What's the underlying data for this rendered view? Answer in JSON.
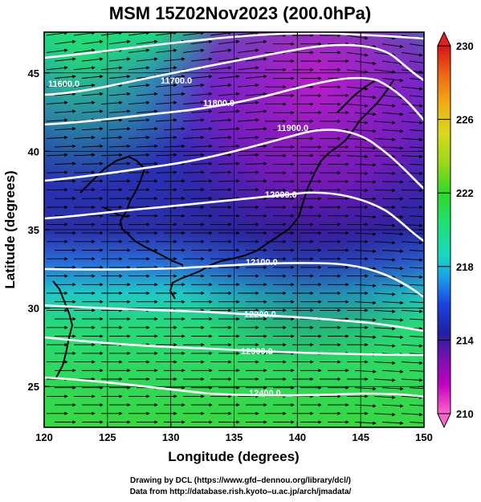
{
  "chart_data": {
    "type": "heatmap",
    "title": "MSM 15Z02Nov2023 (200.0hPa)",
    "xlabel": "Longitude (degrees)",
    "ylabel": "Latitude  (degrees)",
    "xlim": [
      120,
      150
    ],
    "ylim": [
      22.4,
      47.6
    ],
    "x_ticks": [
      120,
      125,
      130,
      135,
      140,
      145,
      150
    ],
    "y_ticks": [
      25,
      30,
      35,
      40,
      45
    ],
    "colorbar": {
      "range": [
        210,
        230
      ],
      "ticks": [
        210,
        214,
        218,
        222,
        226,
        230
      ],
      "colors": [
        "#ff66cc",
        "#c000c0",
        "#7a10b0",
        "#2020a0",
        "#1c44e6",
        "#1aa0e8",
        "#18d8c0",
        "#20e070",
        "#30d828",
        "#9ad81a",
        "#d8d81a",
        "#f0b014",
        "#f06814",
        "#d81414"
      ]
    },
    "contours": [
      {
        "value": 11600.0,
        "label": "11600.0"
      },
      {
        "value": 11700.0,
        "label": "11700.0"
      },
      {
        "value": 11800.0,
        "label": "11800.0"
      },
      {
        "value": 11900.0,
        "label": "11900.0"
      },
      {
        "value": 12000.0,
        "label": "12000.0"
      },
      {
        "value": 12100.0,
        "label": "12100.0"
      },
      {
        "value": 12200.0,
        "label": "12200.0"
      },
      {
        "value": 12300.0,
        "label": "12300.0"
      },
      {
        "value": 12400.0,
        "label": "12400.0"
      }
    ],
    "grid": true
  },
  "credits": {
    "line1": "Drawing by DCL (https://www.gfd–dennou.org/library/dcl/)",
    "line2": "Data from http://database.rish.kyoto–u.ac.jp/arch/jmadata/"
  }
}
